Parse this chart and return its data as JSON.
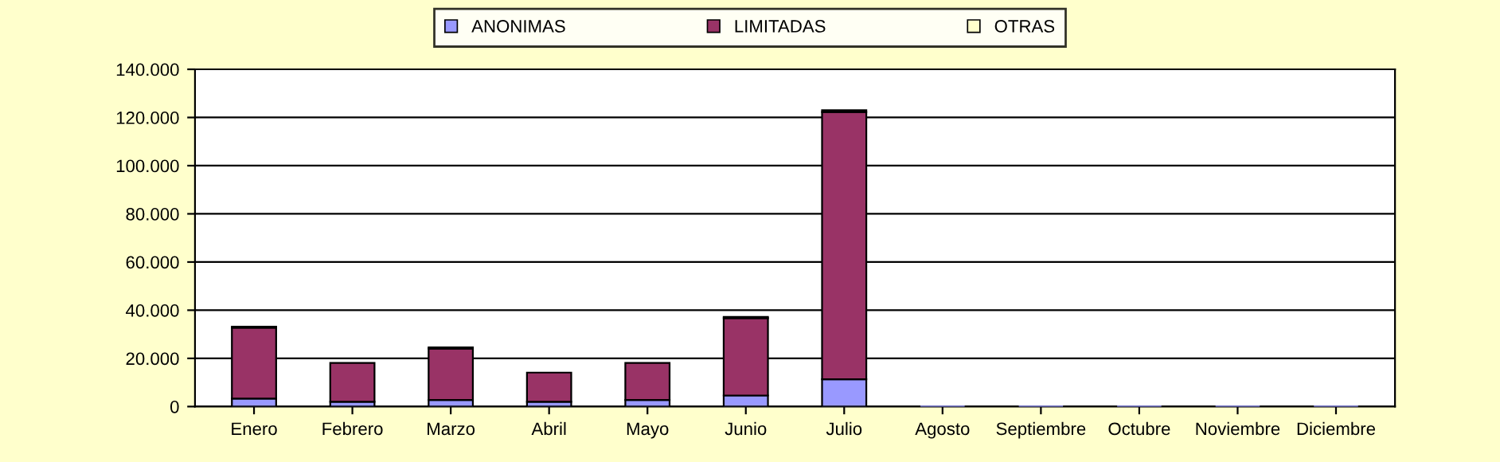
{
  "chart_data": {
    "type": "bar",
    "stacked": true,
    "categories": [
      "Enero",
      "Febrero",
      "Marzo",
      "Abril",
      "Mayo",
      "Junio",
      "Julio",
      "Agosto",
      "Septiembre",
      "Octubre",
      "Noviembre",
      "Diciembre"
    ],
    "series": [
      {
        "name": "ANONIMAS",
        "color": "#9999ff",
        "values": [
          3300,
          2000,
          2700,
          2000,
          2700,
          4600,
          11300,
          0,
          0,
          0,
          0,
          0
        ]
      },
      {
        "name": "LIMITADAS",
        "color": "#993366",
        "values": [
          29400,
          16100,
          21400,
          12100,
          15400,
          32100,
          111000,
          0,
          0,
          0,
          0,
          0
        ]
      },
      {
        "name": "OTRAS",
        "color": "#ffffcc",
        "values": [
          500,
          null,
          500,
          null,
          null,
          500,
          700,
          0,
          0,
          0,
          0,
          0
        ]
      }
    ],
    "ylim": [
      0,
      140000
    ],
    "yticks": [
      {
        "value": 0,
        "label": "0"
      },
      {
        "value": 20000,
        "label": "20.000"
      },
      {
        "value": 40000,
        "label": "40.000"
      },
      {
        "value": 60000,
        "label": "60.000"
      },
      {
        "value": 80000,
        "label": "80.000"
      },
      {
        "value": 100000,
        "label": "100.000"
      },
      {
        "value": 120000,
        "label": "120.000"
      },
      {
        "value": 140000,
        "label": "140.000"
      }
    ],
    "grid": "y",
    "legend": "top"
  }
}
